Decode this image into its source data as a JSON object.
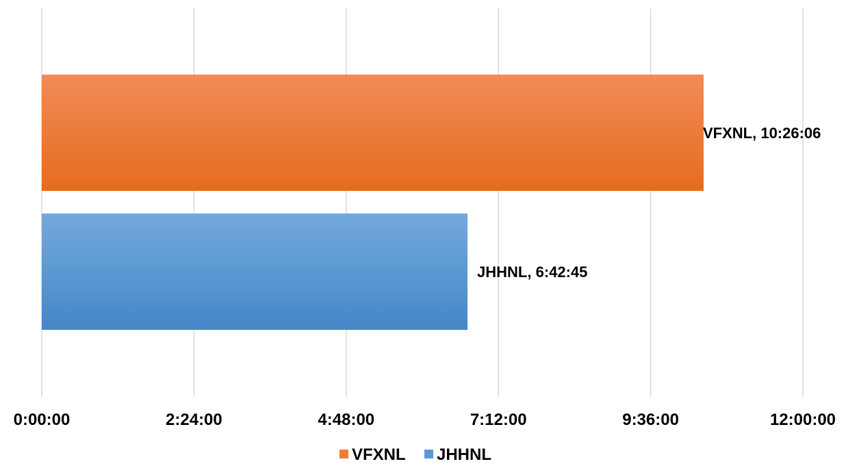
{
  "chart_data": {
    "type": "bar",
    "orientation": "horizontal",
    "title": "",
    "xlabel": "",
    "ylabel": "",
    "value_format": "h:mm:ss",
    "xlim": [
      "0:00:00",
      "12:00:00"
    ],
    "ticks": [
      "0:00:00",
      "2:24:00",
      "4:48:00",
      "7:12:00",
      "9:36:00",
      "12:00:00"
    ],
    "grid": true,
    "legend_position": "bottom",
    "series": [
      {
        "name": "VFXNL",
        "value": "10:26:06",
        "label": "VFXNL, 10:26:06",
        "color": "#ed7d31"
      },
      {
        "name": "JHHNL",
        "value": "6:42:45",
        "label": "JHHNL, 6:42:45",
        "color": "#5b9bd5"
      }
    ]
  }
}
